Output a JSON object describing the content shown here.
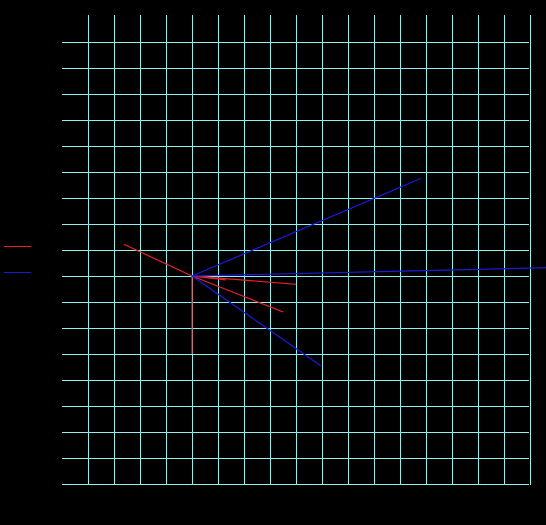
{
  "colors": {
    "background": "#000000",
    "grid": "#8ff0ee",
    "series_a": "#e8202a",
    "series_b": "#1b1bd6"
  },
  "legend": {
    "items": [
      {
        "name": "",
        "color_key": "series_a"
      },
      {
        "name": "",
        "color_key": "series_b"
      }
    ]
  },
  "plot": {
    "vertical_gridlines": 18,
    "horizontal_gridlines": 18,
    "origin_col": 4,
    "origin_row": 9
  },
  "rays": {
    "series_a": [
      {
        "dc": -2.62,
        "dr": -1.22
      },
      {
        "dc": 1.3,
        "dr": 0.15
      },
      {
        "dc": 4.0,
        "dr": 0.32
      },
      {
        "dc": 3.5,
        "dr": 1.38
      },
      {
        "dc": 0.0,
        "dr": 3.0
      }
    ],
    "series_b": [
      {
        "dc": 8.8,
        "dr": -3.75
      },
      {
        "dc": 13.7,
        "dr": -0.32
      },
      {
        "dc": 4.95,
        "dr": 3.45
      }
    ]
  }
}
